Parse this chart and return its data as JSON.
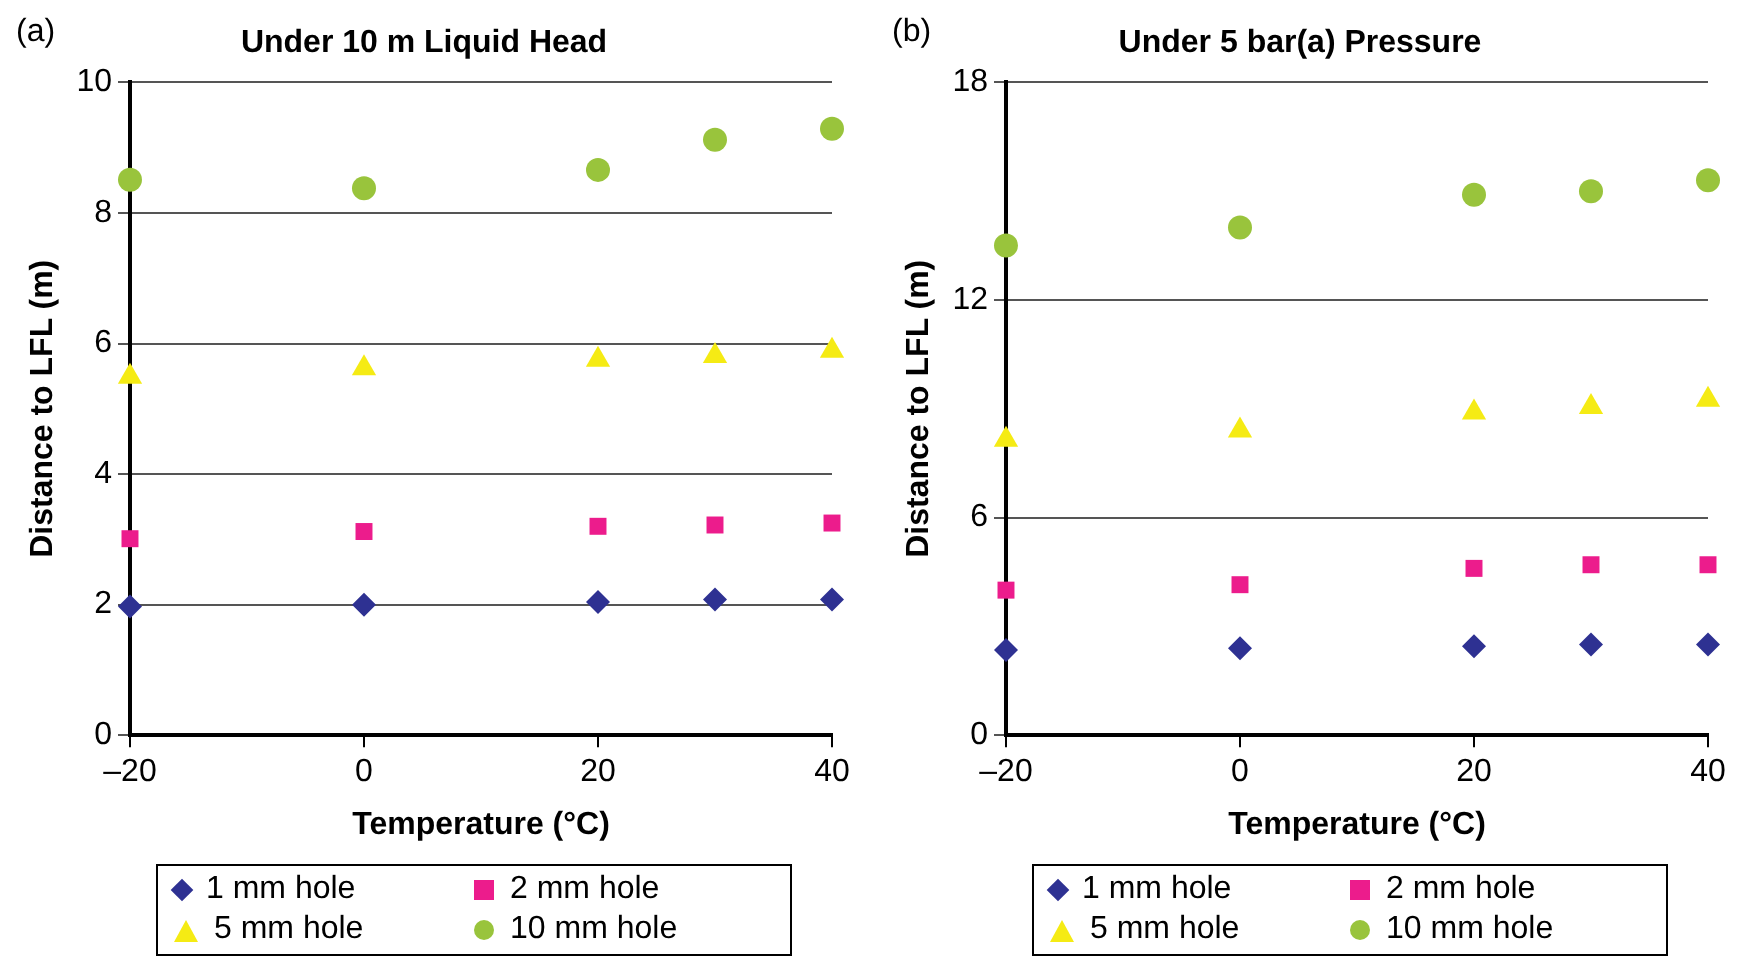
{
  "chart_data": [
    {
      "type": "scatter",
      "title": "Under 10 m Liquid Head",
      "xlabel": "Temperature (°C)",
      "ylabel": "Distance to LFL (m)",
      "annotations": [
        "(a)"
      ],
      "x": [
        -20,
        0,
        20,
        30,
        40
      ],
      "series": [
        {
          "name": "1 mm hole",
          "color": "#2e3192",
          "marker": "diamond",
          "values": [
            1.97,
            2.0,
            2.04,
            2.08,
            2.08
          ]
        },
        {
          "name": "2 mm hole",
          "color": "#ec1c8c",
          "marker": "square",
          "values": [
            3.01,
            3.12,
            3.2,
            3.22,
            3.25
          ]
        },
        {
          "name": "5 mm hole",
          "color": "#f5eb14",
          "marker": "triangle",
          "values": [
            5.49,
            5.62,
            5.75,
            5.81,
            5.89
          ]
        },
        {
          "name": "10 mm hole",
          "color": "#99c43c",
          "marker": "circle",
          "values": [
            8.51,
            8.38,
            8.66,
            9.12,
            9.29
          ]
        }
      ],
      "xlim": [
        -20,
        40
      ],
      "xticks": [
        {
          "value": -20,
          "label": "–20"
        },
        0,
        20,
        40
      ],
      "ylim": [
        0,
        10
      ],
      "yticks": [
        0,
        2,
        4,
        6,
        8,
        10
      ],
      "grid": "y",
      "legend": "bottom"
    },
    {
      "type": "scatter",
      "title": "Under 5 bar(a) Pressure",
      "xlabel": "Temperature (°C)",
      "ylabel": "Distance to LFL (m)",
      "annotations": [
        "(b)"
      ],
      "x": [
        -20,
        0,
        20,
        30,
        40
      ],
      "series": [
        {
          "name": "1 mm hole",
          "color": "#2e3192",
          "marker": "diamond",
          "values": [
            2.35,
            2.4,
            2.45,
            2.5,
            2.5
          ]
        },
        {
          "name": "2 mm hole",
          "color": "#ec1c8c",
          "marker": "square",
          "values": [
            4.0,
            4.15,
            4.6,
            4.7,
            4.7
          ]
        },
        {
          "name": "5 mm hole",
          "color": "#f5eb14",
          "marker": "triangle",
          "values": [
            8.15,
            8.4,
            8.9,
            9.05,
            9.25
          ]
        },
        {
          "name": "10 mm hole",
          "color": "#99c43c",
          "marker": "circle",
          "values": [
            13.5,
            14.0,
            14.9,
            15.0,
            15.3
          ]
        }
      ],
      "xlim": [
        -20,
        40
      ],
      "xticks": [
        {
          "value": -20,
          "label": "–20"
        },
        0,
        20,
        40
      ],
      "ylim": [
        0,
        18
      ],
      "yticks": [
        0,
        6,
        12,
        18
      ],
      "grid": "y",
      "legend": "bottom"
    }
  ]
}
